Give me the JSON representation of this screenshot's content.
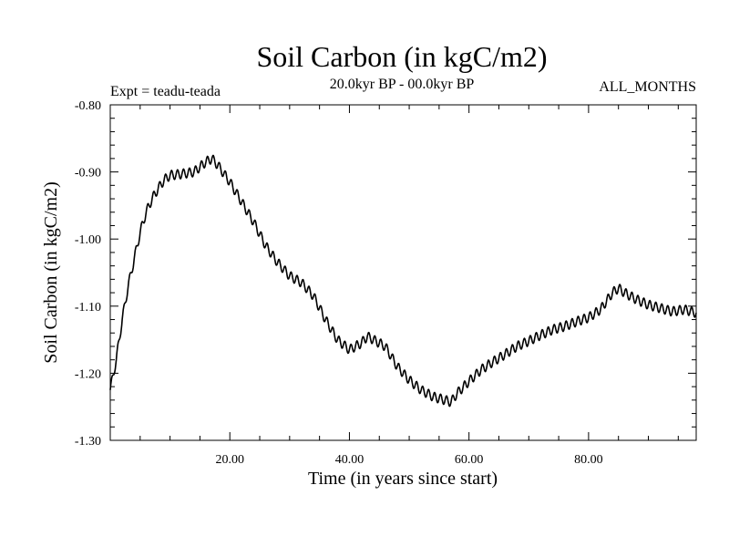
{
  "chart_data": {
    "type": "line",
    "title": "Soil Carbon (in kgC/m2)",
    "subtitle": "20.0kyr BP - 00.0kyr BP",
    "experiment_label": "Expt = teadu-teada",
    "season_label": "ALL_MONTHS",
    "xlabel": "Time (in years since start)",
    "ylabel": "Soil Carbon (in kgC/m2)",
    "xlim": [
      0,
      98
    ],
    "ylim": [
      -1.3,
      -0.8
    ],
    "x_tick_values": [
      20,
      40,
      60,
      80
    ],
    "x_tick_labels": [
      "20.00",
      "40.00",
      "60.00",
      "80.00"
    ],
    "y_tick_values": [
      -0.8,
      -0.9,
      -1.0,
      -1.1,
      -1.2,
      -1.3
    ],
    "y_tick_labels": [
      "-0.80",
      "-0.90",
      "-1.00",
      "-1.10",
      "-1.20",
      "-1.30"
    ],
    "grid": false,
    "series": [
      {
        "name": "Soil Carbon",
        "points_per_year": 12,
        "seasonal_amplitude": 0.007,
        "x": [
          0,
          1,
          2,
          3,
          4,
          5,
          6,
          7,
          8,
          9,
          10,
          12,
          14,
          16,
          17,
          18,
          20,
          22,
          24,
          26,
          28,
          30,
          32,
          34,
          36,
          38,
          40,
          42,
          43,
          44,
          46,
          48,
          50,
          52,
          54,
          56,
          57,
          58,
          60,
          62,
          64,
          66,
          68,
          70,
          72,
          74,
          76,
          78,
          80,
          82,
          84,
          85,
          86,
          88,
          90,
          92,
          94,
          96,
          98
        ],
        "y": [
          -1.225,
          -1.18,
          -1.12,
          -1.07,
          -1.03,
          -0.99,
          -0.96,
          -0.94,
          -0.925,
          -0.912,
          -0.905,
          -0.903,
          -0.9,
          -0.885,
          -0.88,
          -0.89,
          -0.915,
          -0.945,
          -0.975,
          -1.01,
          -1.035,
          -1.055,
          -1.065,
          -1.085,
          -1.12,
          -1.15,
          -1.165,
          -1.155,
          -1.145,
          -1.15,
          -1.16,
          -1.19,
          -1.21,
          -1.225,
          -1.235,
          -1.24,
          -1.243,
          -1.23,
          -1.212,
          -1.195,
          -1.183,
          -1.172,
          -1.16,
          -1.152,
          -1.143,
          -1.135,
          -1.13,
          -1.123,
          -1.117,
          -1.105,
          -1.08,
          -1.073,
          -1.08,
          -1.09,
          -1.098,
          -1.103,
          -1.108,
          -1.105,
          -1.11
        ]
      }
    ]
  }
}
